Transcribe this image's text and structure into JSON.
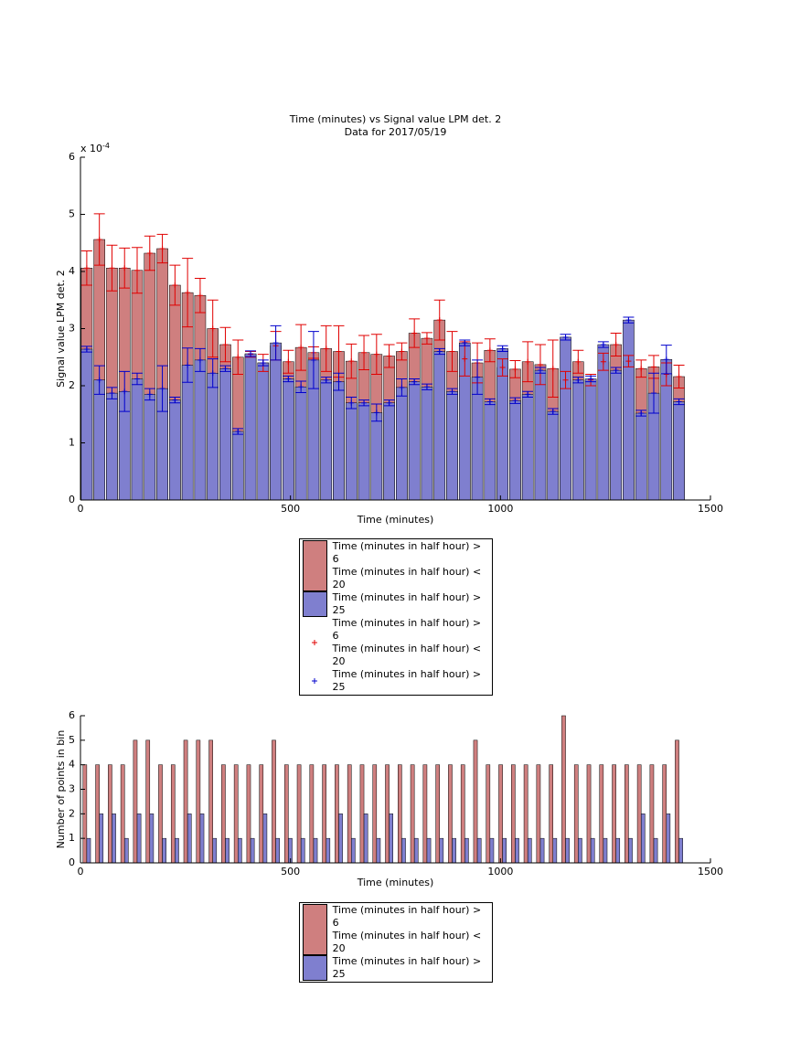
{
  "chart_data": [
    {
      "type": "bar",
      "title": "Time (minutes) vs Signal value LPM det. 2",
      "subtitle": "Data for 2017/05/19",
      "x_label": "Time (minutes)",
      "y_label": "Signal value LPM det. 2",
      "y_scale_label": {
        "base": "x 10",
        "exponent": "-4"
      },
      "grouped": false,
      "x": [
        15,
        45,
        75,
        105,
        135,
        165,
        195,
        225,
        255,
        285,
        315,
        345,
        375,
        405,
        435,
        465,
        495,
        525,
        555,
        585,
        615,
        645,
        675,
        705,
        735,
        765,
        795,
        825,
        855,
        885,
        915,
        945,
        975,
        1005,
        1035,
        1065,
        1095,
        1125,
        1155,
        1185,
        1215,
        1245,
        1275,
        1305,
        1335,
        1365,
        1395,
        1425
      ],
      "xlim": [
        0,
        1500
      ],
      "xticks": [
        0,
        500,
        1000,
        1500
      ],
      "ylim": [
        0,
        6
      ],
      "yticks": [
        0,
        1,
        2,
        3,
        4,
        5,
        6
      ],
      "series": [
        {
          "name": "Time (minutes in half hour) > 6\nTime (minutes in half hour) < 20",
          "errorbar_name": "Time (minutes in half hour) > 6\nTime (minutes in half hour) < 20",
          "color": "#cf7f7f",
          "errorbar_color": "#e00000",
          "values": [
            4.06,
            4.56,
            4.06,
            4.06,
            4.02,
            4.32,
            4.4,
            3.76,
            3.63,
            3.58,
            3.0,
            2.72,
            2.5,
            2.55,
            2.4,
            2.7,
            2.42,
            2.67,
            2.58,
            2.65,
            2.6,
            2.43,
            2.58,
            2.55,
            2.52,
            2.6,
            2.92,
            2.83,
            3.15,
            2.6,
            2.47,
            2.4,
            2.62,
            2.32,
            2.29,
            2.42,
            2.37,
            2.3,
            2.1,
            2.42,
            2.1,
            2.42,
            2.72,
            2.43,
            2.3,
            2.33,
            2.2,
            2.16
          ],
          "errors": [
            0.3,
            0.45,
            0.4,
            0.35,
            0.4,
            0.3,
            0.25,
            0.35,
            0.6,
            0.3,
            0.5,
            0.3,
            0.3,
            0.05,
            0.15,
            0.25,
            0.2,
            0.4,
            0.1,
            0.4,
            0.45,
            0.3,
            0.3,
            0.35,
            0.2,
            0.15,
            0.25,
            0.1,
            0.35,
            0.35,
            0.3,
            0.35,
            0.2,
            0.15,
            0.15,
            0.35,
            0.35,
            0.5,
            0.15,
            0.2,
            0.1,
            0.15,
            0.2,
            0.1,
            0.15,
            0.2,
            0.2,
            0.2
          ]
        },
        {
          "name": "Time (minutes in half hour) > 25",
          "errorbar_name": "Time (minutes in half hour) > 25",
          "color": "#7f7fcf",
          "errorbar_color": "#0000cc",
          "values": [
            2.64,
            2.1,
            1.87,
            1.9,
            2.12,
            1.85,
            1.95,
            1.75,
            2.36,
            2.45,
            2.22,
            2.3,
            1.2,
            2.56,
            2.4,
            2.75,
            2.12,
            1.98,
            2.45,
            2.1,
            2.07,
            1.7,
            1.7,
            1.53,
            1.7,
            1.97,
            2.07,
            1.98,
            2.6,
            1.9,
            2.75,
            2.15,
            1.72,
            2.65,
            1.74,
            1.85,
            2.27,
            1.55,
            2.85,
            2.1,
            2.12,
            2.72,
            2.27,
            3.15,
            1.52,
            1.87,
            2.46,
            1.72
          ],
          "errors": [
            0.05,
            0.25,
            0.1,
            0.35,
            0.1,
            0.1,
            0.4,
            0.05,
            0.3,
            0.2,
            0.25,
            0.05,
            0.05,
            0.05,
            0.05,
            0.3,
            0.05,
            0.1,
            0.5,
            0.05,
            0.15,
            0.1,
            0.05,
            0.15,
            0.05,
            0.15,
            0.05,
            0.05,
            0.05,
            0.05,
            0.05,
            0.3,
            0.05,
            0.05,
            0.05,
            0.05,
            0.05,
            0.05,
            0.05,
            0.05,
            0.05,
            0.05,
            0.05,
            0.05,
            0.05,
            0.35,
            0.25,
            0.05
          ]
        }
      ]
    },
    {
      "type": "bar",
      "x_label": "Time (minutes)",
      "y_label": "Number of points in bin",
      "grouped": true,
      "x": [
        15,
        45,
        75,
        105,
        135,
        165,
        195,
        225,
        255,
        285,
        315,
        345,
        375,
        405,
        435,
        465,
        495,
        525,
        555,
        585,
        615,
        645,
        675,
        705,
        735,
        765,
        795,
        825,
        855,
        885,
        915,
        945,
        975,
        1005,
        1035,
        1065,
        1095,
        1125,
        1155,
        1185,
        1215,
        1245,
        1275,
        1305,
        1335,
        1365,
        1395,
        1425
      ],
      "xlim": [
        0,
        1500
      ],
      "xticks": [
        0,
        500,
        1000,
        1500
      ],
      "ylim": [
        0,
        6
      ],
      "yticks": [
        0,
        1,
        2,
        3,
        4,
        5,
        6
      ],
      "series": [
        {
          "name": "Time (minutes in half hour) > 6\nTime (minutes in half hour) < 20",
          "color": "#cf7f7f",
          "values": [
            4,
            4,
            4,
            4,
            5,
            5,
            4,
            4,
            5,
            5,
            5,
            4,
            4,
            4,
            4,
            5,
            4,
            4,
            4,
            4,
            4,
            4,
            4,
            4,
            4,
            4,
            4,
            4,
            4,
            4,
            4,
            5,
            4,
            4,
            4,
            4,
            4,
            4,
            6,
            4,
            4,
            4,
            4,
            4,
            4,
            4,
            4,
            5
          ]
        },
        {
          "name": "Time (minutes in half hour) > 25",
          "color": "#7f7fcf",
          "values": [
            1,
            2,
            2,
            1,
            2,
            2,
            1,
            1,
            2,
            2,
            1,
            1,
            1,
            1,
            2,
            1,
            1,
            1,
            1,
            1,
            2,
            1,
            2,
            1,
            2,
            1,
            1,
            1,
            1,
            1,
            1,
            1,
            1,
            1,
            1,
            1,
            1,
            1,
            1,
            1,
            1,
            1,
            1,
            1,
            2,
            1,
            2,
            1
          ]
        }
      ]
    }
  ]
}
